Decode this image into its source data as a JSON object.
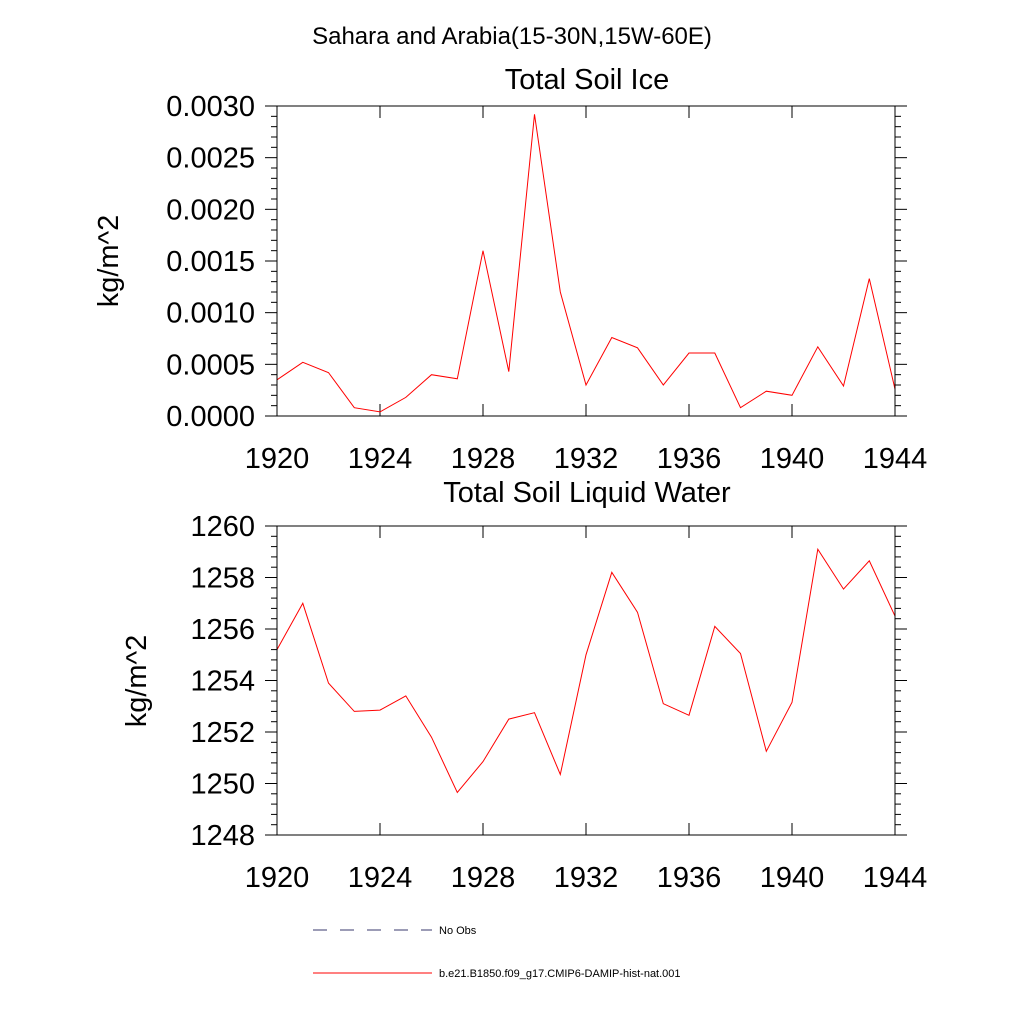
{
  "figure": {
    "title": "Sahara and Arabia(15-30N,15W-60E)"
  },
  "chart_data": [
    {
      "type": "line",
      "title": "Total Soil Ice",
      "ylabel": "kg/m^2",
      "xlabel": "",
      "xlim": [
        1920,
        1944
      ],
      "ylim": [
        0.0,
        0.003
      ],
      "xticks": [
        "1920",
        "1924",
        "1928",
        "1932",
        "1936",
        "1940",
        "1944"
      ],
      "yticks": [
        "0.0000",
        "0.0005",
        "0.0010",
        "0.0015",
        "0.0020",
        "0.0025",
        "0.0030"
      ],
      "ytick_values": [
        0.0,
        0.0005,
        0.001,
        0.0015,
        0.002,
        0.0025,
        0.003
      ],
      "x": [
        1920,
        1921,
        1922,
        1923,
        1924,
        1925,
        1926,
        1927,
        1928,
        1929,
        1930,
        1931,
        1932,
        1933,
        1934,
        1935,
        1936,
        1937,
        1938,
        1939,
        1940,
        1941,
        1942,
        1943,
        1944
      ],
      "series": [
        {
          "name": "b.e21.B1850.f09_g17.CMIP6-DAMIP-hist-nat.001",
          "color": "#ff0000",
          "values": [
            0.00035,
            0.00052,
            0.00042,
            8e-05,
            4e-05,
            0.00018,
            0.0004,
            0.00036,
            0.0016,
            0.00043,
            0.00292,
            0.0012,
            0.0003,
            0.00076,
            0.00066,
            0.0003,
            0.00061,
            0.00061,
            8e-05,
            0.00024,
            0.0002,
            0.00067,
            0.00029,
            0.00133,
            0.00026
          ]
        }
      ],
      "grid": false
    },
    {
      "type": "line",
      "title": "Total Soil Liquid Water",
      "ylabel": "kg/m^2",
      "xlabel": "",
      "xlim": [
        1920,
        1944
      ],
      "ylim": [
        1248,
        1260
      ],
      "xticks": [
        "1920",
        "1924",
        "1928",
        "1932",
        "1936",
        "1940",
        "1944"
      ],
      "yticks": [
        "1248",
        "1250",
        "1252",
        "1254",
        "1256",
        "1258",
        "1260"
      ],
      "ytick_values": [
        1248,
        1250,
        1252,
        1254,
        1256,
        1258,
        1260
      ],
      "x": [
        1920,
        1921,
        1922,
        1923,
        1924,
        1925,
        1926,
        1927,
        1928,
        1929,
        1930,
        1931,
        1932,
        1933,
        1934,
        1935,
        1936,
        1937,
        1938,
        1939,
        1940,
        1941,
        1942,
        1943,
        1944
      ],
      "series": [
        {
          "name": "b.e21.B1850.f09_g17.CMIP6-DAMIP-hist-nat.001",
          "color": "#ff0000",
          "values": [
            1255.2,
            1257.0,
            1253.9,
            1252.8,
            1252.85,
            1253.4,
            1251.8,
            1249.65,
            1250.85,
            1252.5,
            1252.75,
            1250.35,
            1255.0,
            1258.2,
            1256.65,
            1253.1,
            1252.65,
            1256.1,
            1255.05,
            1251.25,
            1253.15,
            1259.1,
            1257.55,
            1258.65,
            1256.5
          ]
        }
      ],
      "grid": false
    }
  ],
  "legend": {
    "entries": [
      {
        "label": "No Obs",
        "style": "dashed",
        "color": "#3a3a6e"
      },
      {
        "label": "b.e21.B1850.f09_g17.CMIP6-DAMIP-hist-nat.001",
        "style": "solid",
        "color": "#ff0000"
      }
    ]
  }
}
